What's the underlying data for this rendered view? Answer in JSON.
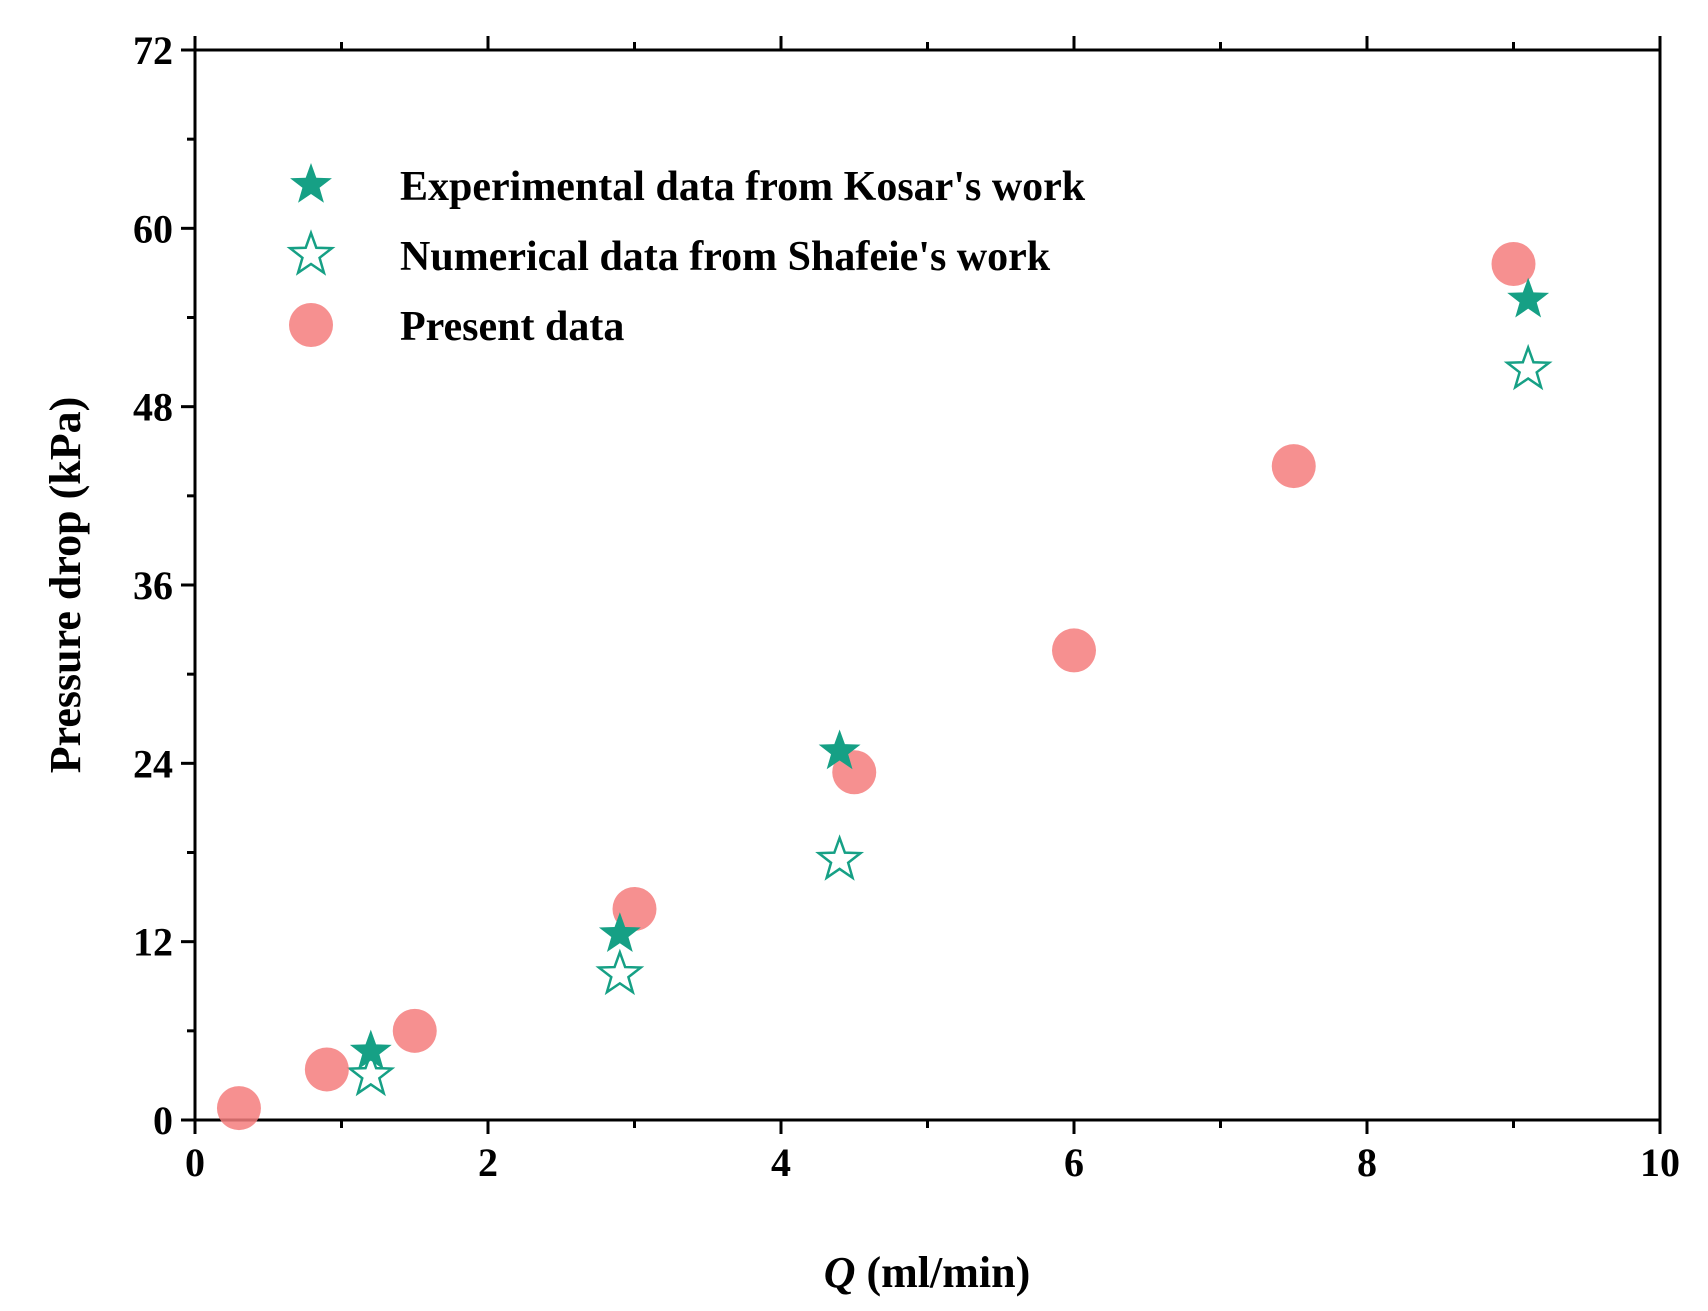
{
  "chart_data": {
    "type": "scatter",
    "title": "",
    "xlabel_symbol": "Q",
    "xlabel_unit": " (ml/min)",
    "ylabel": "Pressure drop (kPa)",
    "xlim": [
      0,
      10
    ],
    "ylim": [
      0,
      72
    ],
    "xticks": [
      0,
      2,
      4,
      6,
      8,
      10
    ],
    "yticks": [
      0,
      12,
      24,
      36,
      48,
      60,
      72
    ],
    "x_minor_step": 1,
    "y_minor_step": 6,
    "grid": false,
    "legend_position": "top-left",
    "series": [
      {
        "name": "Experimental data from Kosar's work",
        "marker": "star-filled",
        "color": "#16a085",
        "points": [
          {
            "x": 1.2,
            "y": 4.6
          },
          {
            "x": 2.9,
            "y": 12.5
          },
          {
            "x": 4.4,
            "y": 24.8
          },
          {
            "x": 9.1,
            "y": 55.2
          }
        ]
      },
      {
        "name": "Numerical data from Shafeie's work",
        "marker": "star-open",
        "color": "#16a085",
        "points": [
          {
            "x": 1.2,
            "y": 3.0
          },
          {
            "x": 2.9,
            "y": 9.8
          },
          {
            "x": 4.4,
            "y": 17.5
          },
          {
            "x": 9.1,
            "y": 50.5
          }
        ]
      },
      {
        "name": "Present data",
        "marker": "circle",
        "color": "#f47c7c",
        "points": [
          {
            "x": 0.3,
            "y": 0.8
          },
          {
            "x": 0.9,
            "y": 3.4
          },
          {
            "x": 1.5,
            "y": 6.0
          },
          {
            "x": 3.0,
            "y": 14.2
          },
          {
            "x": 4.5,
            "y": 23.4
          },
          {
            "x": 6.0,
            "y": 31.6
          },
          {
            "x": 7.5,
            "y": 44.0
          },
          {
            "x": 9.0,
            "y": 57.6
          }
        ]
      }
    ]
  }
}
